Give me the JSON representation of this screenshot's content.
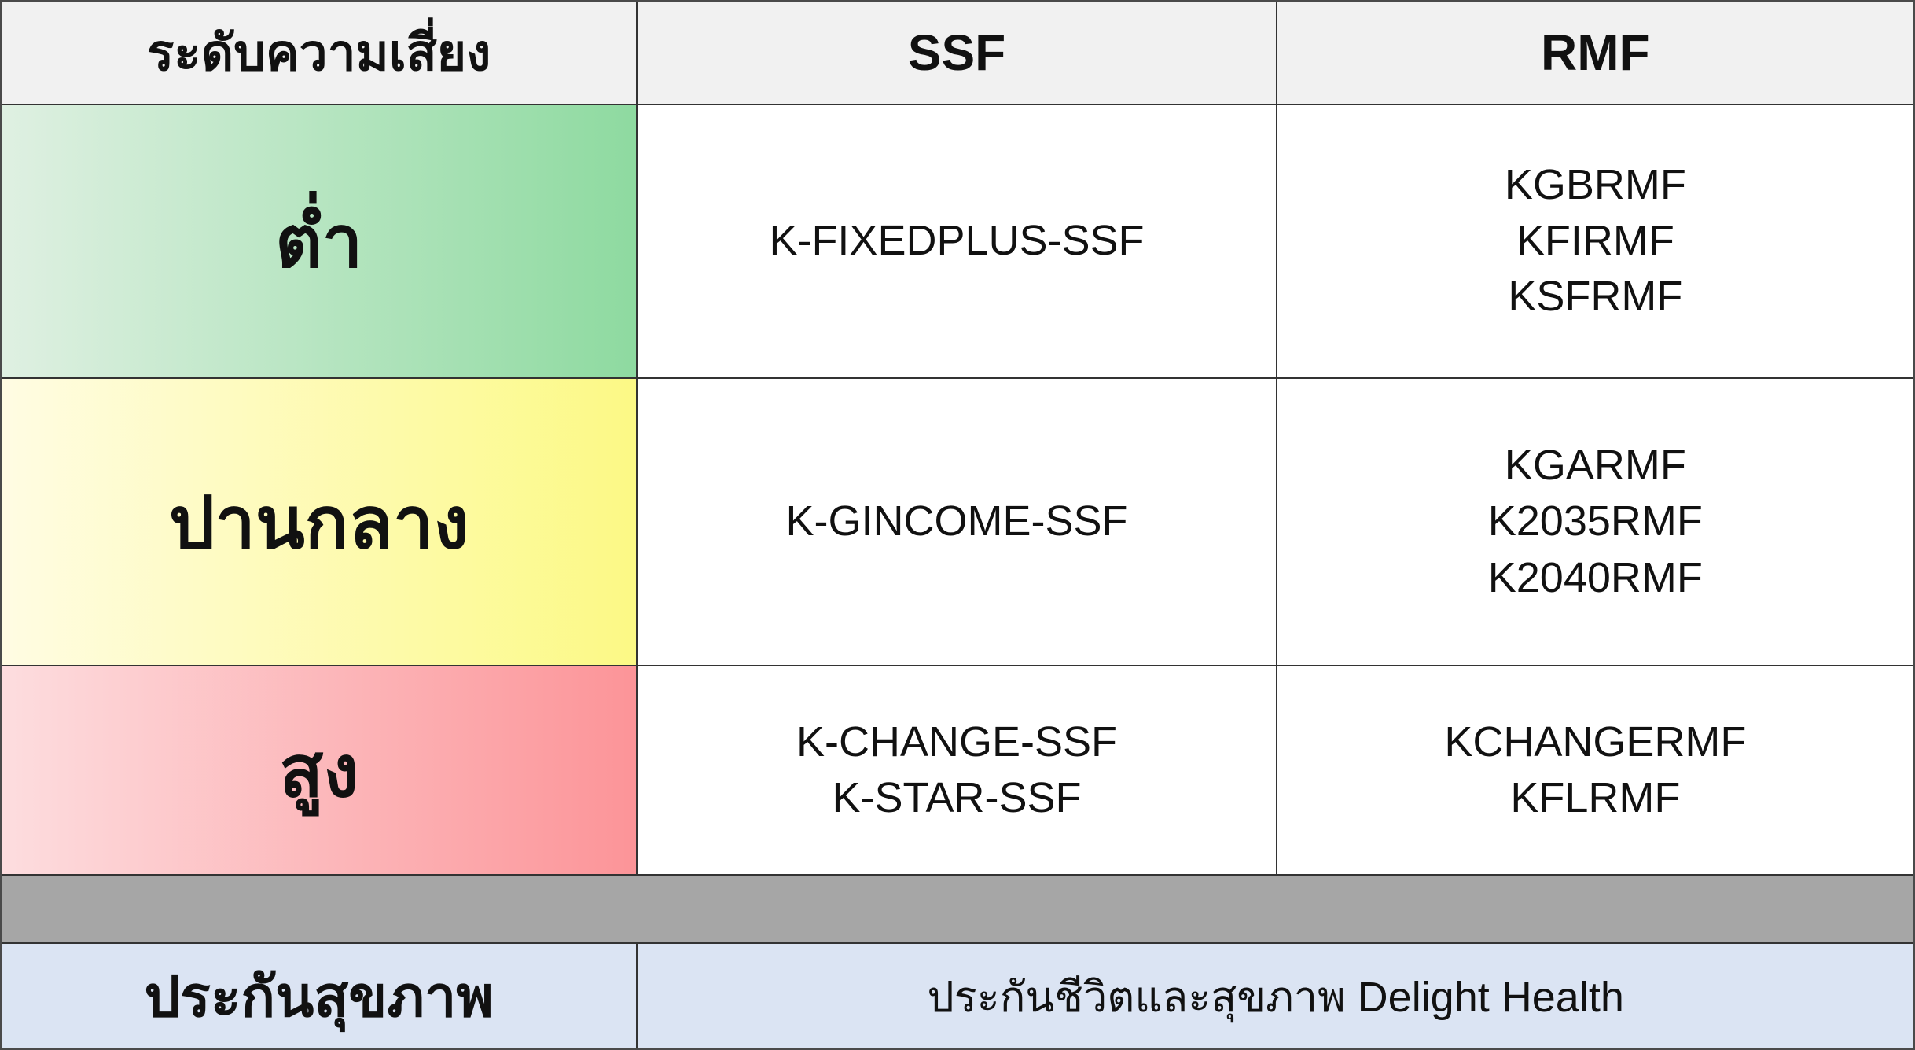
{
  "chart_data": {
    "type": "table",
    "columns": [
      "ระดับความเสี่ยง",
      "SSF",
      "RMF"
    ],
    "rows": [
      {
        "risk_level": "ต่ำ",
        "ssf": [
          "K-FIXEDPLUS-SSF"
        ],
        "rmf": [
          "KGBRMF",
          "KFIRMF",
          "KSFRMF"
        ],
        "row_color_from": "#dff0e2",
        "row_color_to": "#8edaa0"
      },
      {
        "risk_level": "ปานกลาง",
        "ssf": [
          "K-GINCOME-SSF"
        ],
        "rmf": [
          "KGARMF",
          "K2035RMF",
          "K2040RMF"
        ],
        "row_color_from": "#fffce3",
        "row_color_to": "#fcf985"
      },
      {
        "risk_level": "สูง",
        "ssf": [
          "K-CHANGE-SSF",
          "K-STAR-SSF"
        ],
        "rmf": [
          "KCHANGERMF",
          "KFLRMF"
        ],
        "row_color_from": "#fddddf",
        "row_color_to": "#fc9498"
      }
    ],
    "footer": {
      "label": "ประกันสุขภาพ",
      "value": "ประกันชีวิตและสุขภาพ Delight Health"
    }
  },
  "colors": {
    "header_bg": "#f1f1f1",
    "separator_bg": "#a6a6a6",
    "footer_bg": "#dbe4f3",
    "gridline": "#333333",
    "text": "#111111"
  }
}
